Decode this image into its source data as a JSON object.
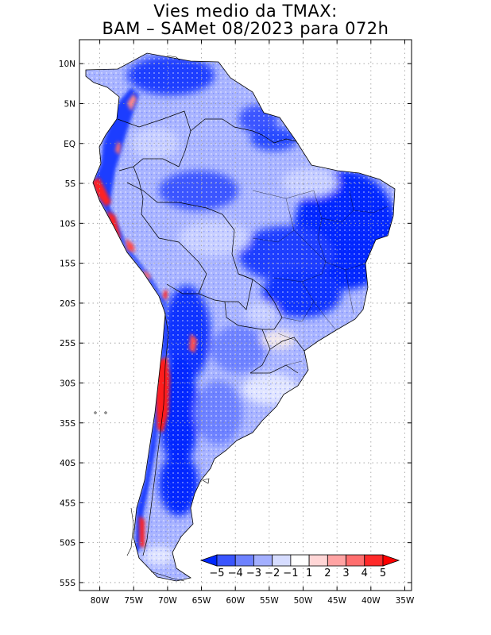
{
  "title": {
    "line1": "Vies medio da TMAX:",
    "line2": "BAM – SAMet 08/2023  para 072h"
  },
  "map_data": {
    "variable": "TMAX bias",
    "lon_range": [
      -83,
      -34
    ],
    "lat_range": [
      -56,
      13
    ],
    "lat_ticks": [
      {
        "value": 10,
        "label": "10N"
      },
      {
        "value": 5,
        "label": "5N"
      },
      {
        "value": 0,
        "label": "EQ"
      },
      {
        "value": -5,
        "label": "5S"
      },
      {
        "value": -10,
        "label": "10S"
      },
      {
        "value": -15,
        "label": "15S"
      },
      {
        "value": -20,
        "label": "20S"
      },
      {
        "value": -25,
        "label": "25S"
      },
      {
        "value": -30,
        "label": "30S"
      },
      {
        "value": -35,
        "label": "35S"
      },
      {
        "value": -40,
        "label": "40S"
      },
      {
        "value": -45,
        "label": "45S"
      },
      {
        "value": -50,
        "label": "50S"
      },
      {
        "value": -55,
        "label": "55S"
      }
    ],
    "lon_ticks": [
      {
        "value": -80,
        "label": "80W"
      },
      {
        "value": -75,
        "label": "75W"
      },
      {
        "value": -70,
        "label": "70W"
      },
      {
        "value": -65,
        "label": "65W"
      },
      {
        "value": -60,
        "label": "60W"
      },
      {
        "value": -55,
        "label": "55W"
      },
      {
        "value": -50,
        "label": "50W"
      },
      {
        "value": -45,
        "label": "45W"
      },
      {
        "value": -40,
        "label": "40W"
      },
      {
        "value": -35,
        "label": "35W"
      }
    ]
  },
  "colorbar": {
    "levels": [
      "−5",
      "−4",
      "−3",
      "−2",
      "−1",
      "1",
      "2",
      "3",
      "4",
      "5"
    ],
    "colors": [
      "#0028ff",
      "#3a55ff",
      "#6e82ff",
      "#a3afff",
      "#d6dcff",
      "#ffffff",
      "#ffd6d6",
      "#ffa3a3",
      "#ff6e6e",
      "#ff2a2a",
      "#ff0000"
    ]
  },
  "palette": {
    "frame": "#000000",
    "grid": "#9a9a9a",
    "border": "#000000"
  }
}
